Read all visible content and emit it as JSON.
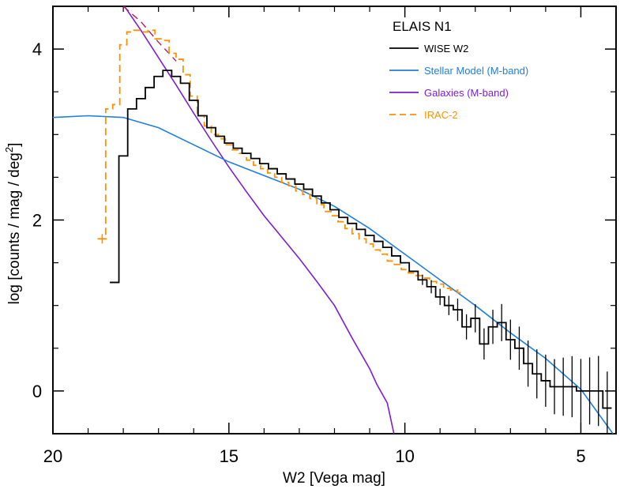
{
  "chart_data": {
    "type": "line",
    "title": "ELAIS N1",
    "xlabel": "W2 [Vega mag]",
    "ylabel": "log [counts / mag / deg",
    "ylabel_sup": "2",
    "ylabel_end": "]",
    "xlim": [
      20,
      4
    ],
    "ylim": [
      -0.5,
      4.5
    ],
    "x_ticks": [
      20,
      15,
      10,
      5
    ],
    "x_tick_labels": [
      "20",
      "15",
      "10",
      "5"
    ],
    "y_ticks": [
      0,
      2,
      4
    ],
    "y_tick_labels": [
      "0",
      "2",
      "4"
    ],
    "legend_position": "top-right",
    "series": [
      {
        "name": "WISE W2",
        "color": "#000000",
        "style": "step",
        "x": [
          18.25,
          18.0,
          17.75,
          17.5,
          17.25,
          17.0,
          16.75,
          16.5,
          16.25,
          16.0,
          15.75,
          15.5,
          15.25,
          15.0,
          14.75,
          14.5,
          14.25,
          14.0,
          13.75,
          13.5,
          13.25,
          13.0,
          12.75,
          12.5,
          12.25,
          12.0,
          11.75,
          11.5,
          11.25,
          11.0,
          10.75,
          10.5,
          10.25,
          10.0,
          9.75,
          9.5,
          9.25,
          9.0,
          8.75,
          8.5,
          8.25,
          8.0,
          7.75,
          7.5,
          7.25,
          7.0,
          6.75,
          6.5,
          6.25,
          6.0,
          5.75,
          5.5,
          5.25,
          5.0,
          4.75,
          4.5,
          4.25
        ],
        "y": [
          1.27,
          2.75,
          3.3,
          3.42,
          3.55,
          3.68,
          3.75,
          3.68,
          3.6,
          3.4,
          3.22,
          3.08,
          2.98,
          2.9,
          2.84,
          2.78,
          2.72,
          2.66,
          2.6,
          2.54,
          2.48,
          2.42,
          2.36,
          2.28,
          2.2,
          2.12,
          2.03,
          1.96,
          1.89,
          1.82,
          1.75,
          1.68,
          1.58,
          1.5,
          1.4,
          1.3,
          1.22,
          1.1,
          1.0,
          0.95,
          0.75,
          0.85,
          0.55,
          0.75,
          0.8,
          0.6,
          0.5,
          0.32,
          0.2,
          0.12,
          0.05,
          0.05,
          0.05,
          0.0,
          0.0,
          0.0,
          -0.2
        ]
      },
      {
        "name": "Stellar Model (M-band)",
        "color": "#1e7fe0",
        "style": "line",
        "x": [
          20,
          19,
          18,
          17,
          16,
          15,
          14,
          13,
          12,
          11,
          10,
          9,
          8,
          7,
          6,
          5,
          4
        ],
        "y": [
          3.2,
          3.22,
          3.2,
          3.08,
          2.88,
          2.68,
          2.52,
          2.36,
          2.16,
          1.9,
          1.6,
          1.3,
          1.0,
          0.68,
          0.38,
          0.02,
          -0.55
        ]
      },
      {
        "name": "Galaxies (M-band)",
        "color": "#7b1fd6",
        "style": "line",
        "x": [
          18.0,
          17.5,
          17.0,
          16.5,
          16.0,
          15.5,
          15.0,
          14.5,
          14.0,
          13.5,
          13.0,
          12.5,
          12.0,
          11.5,
          11.0,
          10.8,
          10.5,
          10.3
        ],
        "y": [
          4.52,
          4.22,
          3.9,
          3.58,
          3.25,
          2.93,
          2.62,
          2.33,
          2.05,
          1.8,
          1.55,
          1.28,
          1.0,
          0.62,
          0.26,
          0.08,
          -0.14,
          -0.52
        ]
      },
      {
        "name": "IRAC-2",
        "color": "#ff9100",
        "style": "step-dashed",
        "x": [
          18.6,
          18.4,
          18.2,
          18.0,
          17.8,
          17.6,
          17.4,
          17.2,
          17.0,
          16.8,
          16.6,
          16.4,
          16.2,
          16.0,
          15.8,
          15.6,
          15.4,
          15.2,
          15.0,
          14.8,
          14.6,
          14.4,
          14.2,
          14.0,
          13.8,
          13.6,
          13.4,
          13.2,
          13.0,
          12.8,
          12.6,
          12.4,
          12.2,
          12.0,
          11.8,
          11.6,
          11.4,
          11.2,
          11.0,
          10.8,
          10.6,
          10.4,
          10.2,
          10.0,
          9.8,
          9.6,
          9.4,
          9.2,
          9.0,
          8.8,
          8.6,
          8.4
        ],
        "y": [
          1.78,
          3.3,
          3.35,
          4.05,
          4.2,
          4.22,
          4.2,
          4.22,
          4.12,
          4.1,
          3.95,
          3.88,
          3.7,
          3.45,
          3.22,
          3.1,
          3.0,
          2.95,
          2.88,
          2.82,
          2.78,
          2.7,
          2.64,
          2.6,
          2.55,
          2.5,
          2.44,
          2.4,
          2.34,
          2.3,
          2.25,
          2.18,
          2.1,
          2.05,
          1.98,
          1.9,
          1.84,
          1.78,
          1.72,
          1.65,
          1.6,
          1.52,
          1.48,
          1.42,
          1.38,
          1.35,
          1.32,
          1.28,
          1.25,
          1.2,
          1.18,
          1.15
        ]
      }
    ],
    "irac_model_extension": {
      "color": "#c2185b",
      "x": [
        18.0,
        17.5,
        17.0,
        16.5
      ],
      "y": [
        4.5,
        4.32,
        4.08,
        3.86
      ]
    }
  }
}
